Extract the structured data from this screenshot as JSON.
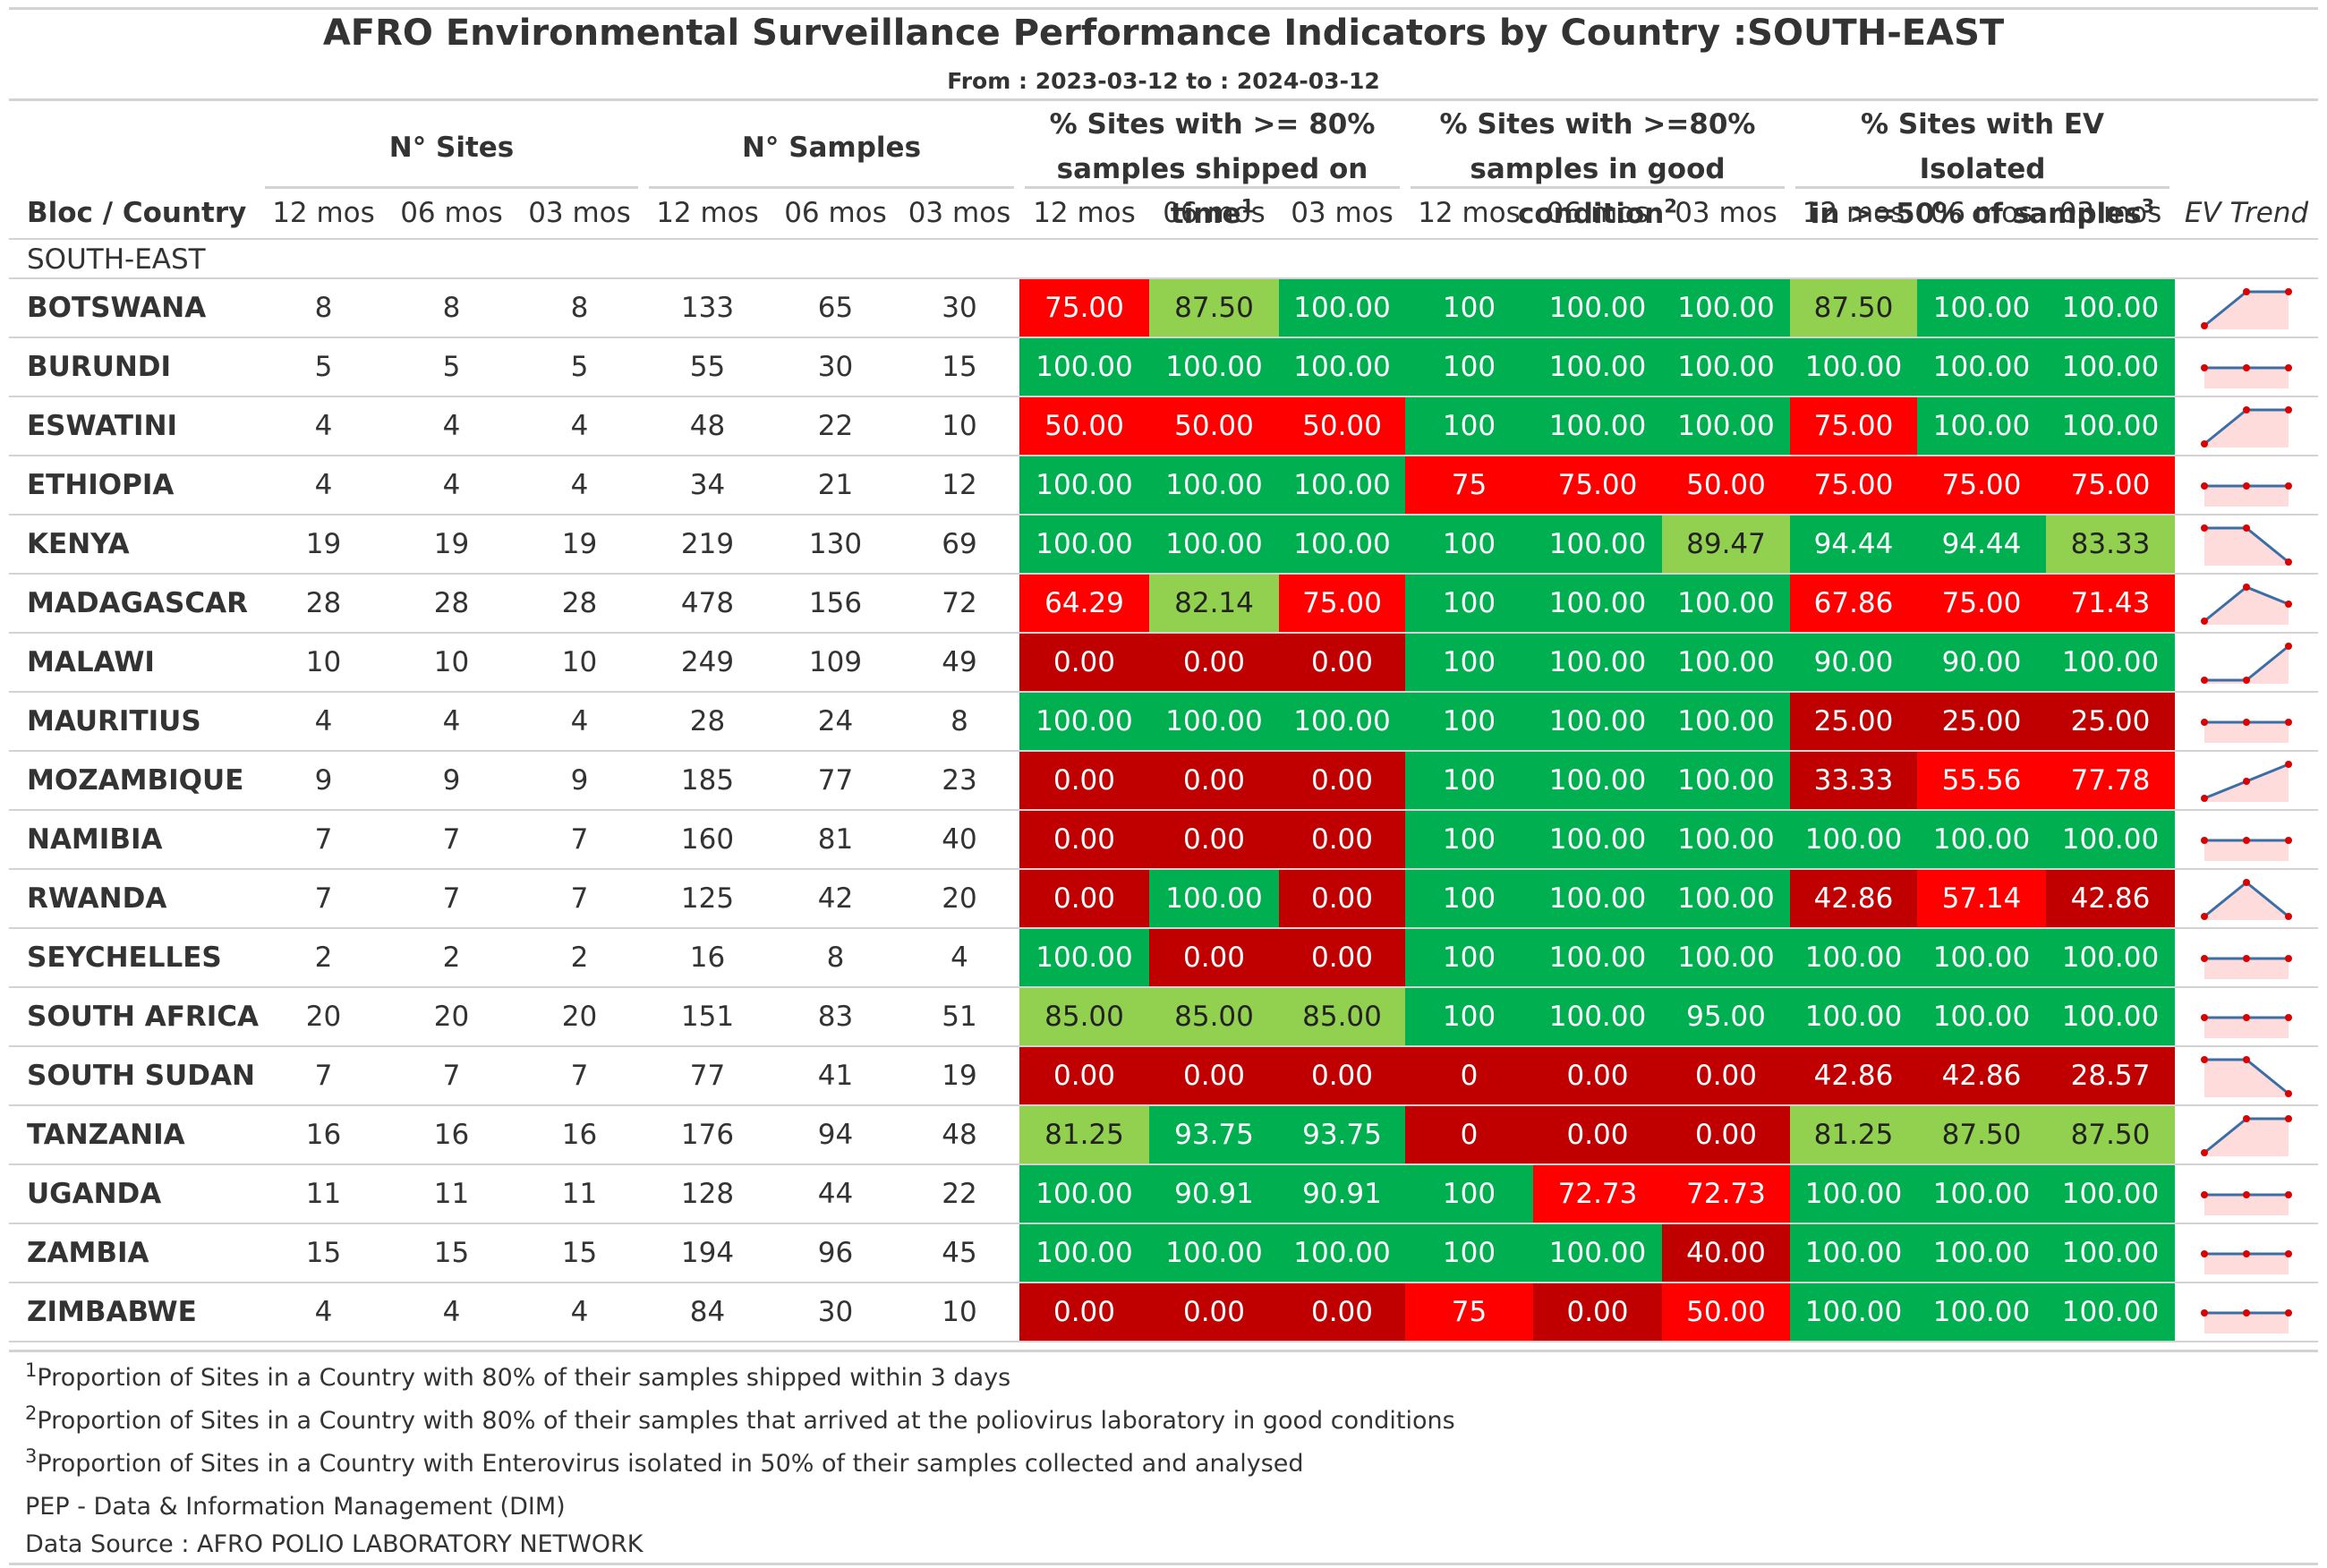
{
  "title": "AFRO Environmental Surveillance Performance Indicators by Country :SOUTH-EAST",
  "subtitle": "From : 2023-03-12 to : 2024-03-12",
  "spanners": [
    {
      "label": "N° Sites",
      "sup": ""
    },
    {
      "label": "N° Samples",
      "sup": ""
    },
    {
      "line1": "% Sites with >= 80%",
      "line2": "samples shipped on time",
      "sup": "1"
    },
    {
      "line1": "% Sites with >=80%",
      "line2": "samples in good condition",
      "sup": "2"
    },
    {
      "line1": "% Sites with EV Isolated",
      "line2": "in >=50% of samples",
      "sup": "3"
    }
  ],
  "columns": [
    "Bloc / Country",
    "12 mos",
    "06 mos",
    "03 mos",
    "12 mos",
    "06 mos",
    "03 mos",
    "12 mos",
    "06 mos",
    "03 mos",
    "12 mos",
    "06 mos",
    "03 mos",
    "12 mos",
    "06 mos",
    "03 mos",
    "EV Trend"
  ],
  "group_label": "SOUTH-EAST",
  "colors": {
    "green": "#00b050",
    "light_green": "#92d050",
    "red": "#ff0000",
    "dark_red": "#c00000",
    "spark_line": "#3a6ea5",
    "spark_dot": "#dd0000"
  },
  "rows": [
    {
      "country": "BOTSWANA",
      "sites": [
        "8",
        "8",
        "8"
      ],
      "samples": [
        "133",
        "65",
        "30"
      ],
      "shipped": [
        "75.00",
        "87.50",
        "100.00"
      ],
      "condition": [
        "100",
        "100.00",
        "100.00"
      ],
      "ev": [
        "87.50",
        "100.00",
        "100.00"
      ]
    },
    {
      "country": "BURUNDI",
      "sites": [
        "5",
        "5",
        "5"
      ],
      "samples": [
        "55",
        "30",
        "15"
      ],
      "shipped": [
        "100.00",
        "100.00",
        "100.00"
      ],
      "condition": [
        "100",
        "100.00",
        "100.00"
      ],
      "ev": [
        "100.00",
        "100.00",
        "100.00"
      ]
    },
    {
      "country": "ESWATINI",
      "sites": [
        "4",
        "4",
        "4"
      ],
      "samples": [
        "48",
        "22",
        "10"
      ],
      "shipped": [
        "50.00",
        "50.00",
        "50.00"
      ],
      "condition": [
        "100",
        "100.00",
        "100.00"
      ],
      "ev": [
        "75.00",
        "100.00",
        "100.00"
      ]
    },
    {
      "country": "ETHIOPIA",
      "sites": [
        "4",
        "4",
        "4"
      ],
      "samples": [
        "34",
        "21",
        "12"
      ],
      "shipped": [
        "100.00",
        "100.00",
        "100.00"
      ],
      "condition": [
        "75",
        "75.00",
        "50.00"
      ],
      "ev": [
        "75.00",
        "75.00",
        "75.00"
      ]
    },
    {
      "country": "KENYA",
      "sites": [
        "19",
        "19",
        "19"
      ],
      "samples": [
        "219",
        "130",
        "69"
      ],
      "shipped": [
        "100.00",
        "100.00",
        "100.00"
      ],
      "condition": [
        "100",
        "100.00",
        "89.47"
      ],
      "ev": [
        "94.44",
        "94.44",
        "83.33"
      ]
    },
    {
      "country": "MADAGASCAR",
      "sites": [
        "28",
        "28",
        "28"
      ],
      "samples": [
        "478",
        "156",
        "72"
      ],
      "shipped": [
        "64.29",
        "82.14",
        "75.00"
      ],
      "condition": [
        "100",
        "100.00",
        "100.00"
      ],
      "ev": [
        "67.86",
        "75.00",
        "71.43"
      ]
    },
    {
      "country": "MALAWI",
      "sites": [
        "10",
        "10",
        "10"
      ],
      "samples": [
        "249",
        "109",
        "49"
      ],
      "shipped": [
        "0.00",
        "0.00",
        "0.00"
      ],
      "condition": [
        "100",
        "100.00",
        "100.00"
      ],
      "ev": [
        "90.00",
        "90.00",
        "100.00"
      ]
    },
    {
      "country": "MAURITIUS",
      "sites": [
        "4",
        "4",
        "4"
      ],
      "samples": [
        "28",
        "24",
        "8"
      ],
      "shipped": [
        "100.00",
        "100.00",
        "100.00"
      ],
      "condition": [
        "100",
        "100.00",
        "100.00"
      ],
      "ev": [
        "25.00",
        "25.00",
        "25.00"
      ]
    },
    {
      "country": "MOZAMBIQUE",
      "sites": [
        "9",
        "9",
        "9"
      ],
      "samples": [
        "185",
        "77",
        "23"
      ],
      "shipped": [
        "0.00",
        "0.00",
        "0.00"
      ],
      "condition": [
        "100",
        "100.00",
        "100.00"
      ],
      "ev": [
        "33.33",
        "55.56",
        "77.78"
      ]
    },
    {
      "country": "NAMIBIA",
      "sites": [
        "7",
        "7",
        "7"
      ],
      "samples": [
        "160",
        "81",
        "40"
      ],
      "shipped": [
        "0.00",
        "0.00",
        "0.00"
      ],
      "condition": [
        "100",
        "100.00",
        "100.00"
      ],
      "ev": [
        "100.00",
        "100.00",
        "100.00"
      ]
    },
    {
      "country": "RWANDA",
      "sites": [
        "7",
        "7",
        "7"
      ],
      "samples": [
        "125",
        "42",
        "20"
      ],
      "shipped": [
        "0.00",
        "100.00",
        "0.00"
      ],
      "condition": [
        "100",
        "100.00",
        "100.00"
      ],
      "ev": [
        "42.86",
        "57.14",
        "42.86"
      ]
    },
    {
      "country": "SEYCHELLES",
      "sites": [
        "2",
        "2",
        "2"
      ],
      "samples": [
        "16",
        "8",
        "4"
      ],
      "shipped": [
        "100.00",
        "0.00",
        "0.00"
      ],
      "condition": [
        "100",
        "100.00",
        "100.00"
      ],
      "ev": [
        "100.00",
        "100.00",
        "100.00"
      ]
    },
    {
      "country": "SOUTH AFRICA",
      "sites": [
        "20",
        "20",
        "20"
      ],
      "samples": [
        "151",
        "83",
        "51"
      ],
      "shipped": [
        "85.00",
        "85.00",
        "85.00"
      ],
      "condition": [
        "100",
        "100.00",
        "95.00"
      ],
      "ev": [
        "100.00",
        "100.00",
        "100.00"
      ]
    },
    {
      "country": "SOUTH SUDAN",
      "sites": [
        "7",
        "7",
        "7"
      ],
      "samples": [
        "77",
        "41",
        "19"
      ],
      "shipped": [
        "0.00",
        "0.00",
        "0.00"
      ],
      "condition": [
        "0",
        "0.00",
        "0.00"
      ],
      "ev": [
        "42.86",
        "42.86",
        "28.57"
      ]
    },
    {
      "country": "TANZANIA",
      "sites": [
        "16",
        "16",
        "16"
      ],
      "samples": [
        "176",
        "94",
        "48"
      ],
      "shipped": [
        "81.25",
        "93.75",
        "93.75"
      ],
      "condition": [
        "0",
        "0.00",
        "0.00"
      ],
      "ev": [
        "81.25",
        "87.50",
        "87.50"
      ]
    },
    {
      "country": "UGANDA",
      "sites": [
        "11",
        "11",
        "11"
      ],
      "samples": [
        "128",
        "44",
        "22"
      ],
      "shipped": [
        "100.00",
        "90.91",
        "90.91"
      ],
      "condition": [
        "100",
        "72.73",
        "72.73"
      ],
      "ev": [
        "100.00",
        "100.00",
        "100.00"
      ]
    },
    {
      "country": "ZAMBIA",
      "sites": [
        "15",
        "15",
        "15"
      ],
      "samples": [
        "194",
        "96",
        "45"
      ],
      "shipped": [
        "100.00",
        "100.00",
        "100.00"
      ],
      "condition": [
        "100",
        "100.00",
        "40.00"
      ],
      "ev": [
        "100.00",
        "100.00",
        "100.00"
      ]
    },
    {
      "country": "ZIMBABWE",
      "sites": [
        "4",
        "4",
        "4"
      ],
      "samples": [
        "84",
        "30",
        "10"
      ],
      "shipped": [
        "0.00",
        "0.00",
        "0.00"
      ],
      "condition": [
        "75",
        "0.00",
        "50.00"
      ],
      "ev": [
        "100.00",
        "100.00",
        "100.00"
      ]
    }
  ],
  "footnotes": [
    {
      "mark": "1",
      "text": "Proportion of Sites in a Country with 80% of their samples shipped within 3 days"
    },
    {
      "mark": "2",
      "text": "Proportion of Sites in a Country with 80% of their samples that arrived at the poliovirus laboratory in good conditions"
    },
    {
      "mark": "3",
      "text": "Proportion of Sites in a Country with Enterovirus isolated in 50% of their samples collected and analysed"
    }
  ],
  "source_notes": [
    "PEP - Data & Information Management (DIM)",
    "Data Source : AFRO POLIO LABORATORY NETWORK"
  ]
}
